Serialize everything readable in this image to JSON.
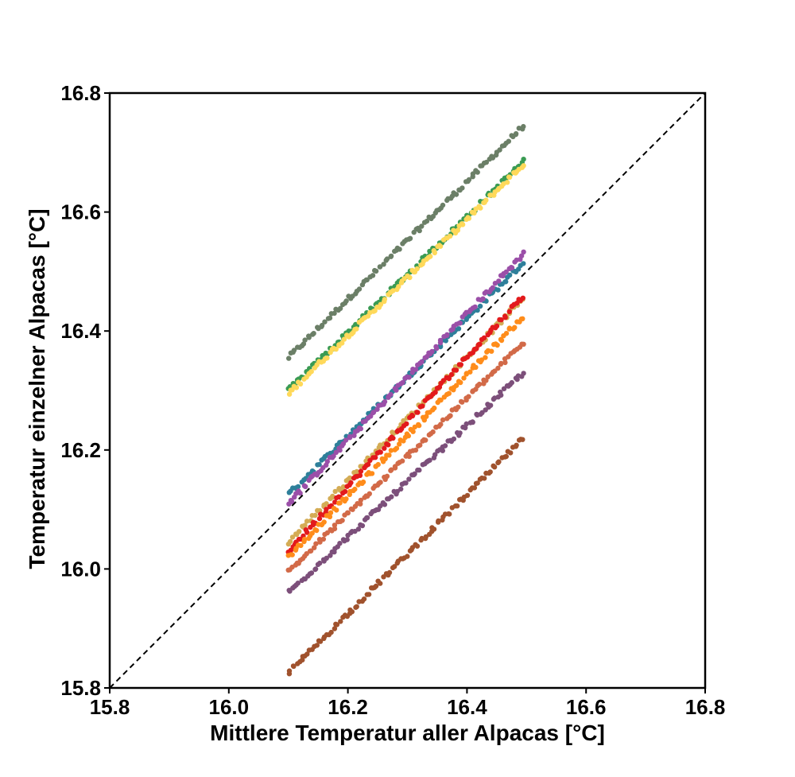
{
  "chart_data": {
    "type": "scatter",
    "title": "",
    "xlabel": "Mittlere Temperatur aller Alpacas [°C]",
    "ylabel": "Temperatur einzelner Alpacas [°C]",
    "xlim": [
      15.8,
      16.8
    ],
    "ylim": [
      15.8,
      16.8
    ],
    "x_ticks": [
      "15.8",
      "16.0",
      "16.2",
      "16.4",
      "16.6",
      "16.8"
    ],
    "y_ticks": [
      "15.8",
      "16.0",
      "16.2",
      "16.4",
      "16.6",
      "16.8"
    ],
    "grid": false,
    "legend": "none",
    "reference_line": {
      "style": "dashed",
      "color": "#000000",
      "from": [
        15.8,
        15.8
      ],
      "to": [
        16.8,
        16.8
      ]
    },
    "x_range": [
      16.1,
      16.495
    ],
    "series": [
      {
        "color": "#6b7f67",
        "y_start": 16.355,
        "y_end": 16.745
      },
      {
        "color": "#3a9b53",
        "y_start": 16.3,
        "y_end": 16.685
      },
      {
        "color": "#ffd95a",
        "y_start": 16.295,
        "y_end": 16.68
      },
      {
        "color": "#2e7f9a",
        "y_start": 16.125,
        "y_end": 16.515
      },
      {
        "color": "#9b4fa8",
        "y_start": 16.11,
        "y_end": 16.53
      },
      {
        "color": "#d4ac55",
        "y_start": 16.045,
        "y_end": 16.455
      },
      {
        "color": "#e31a1c",
        "y_start": 16.03,
        "y_end": 16.46
      },
      {
        "color": "#ff8c1a",
        "y_start": 16.02,
        "y_end": 16.425
      },
      {
        "color": "#d26a48",
        "y_start": 15.995,
        "y_end": 16.38
      },
      {
        "color": "#7c4f7a",
        "y_start": 15.96,
        "y_end": 16.33
      },
      {
        "color": "#a0522d",
        "y_start": 15.825,
        "y_end": 16.22
      }
    ]
  }
}
